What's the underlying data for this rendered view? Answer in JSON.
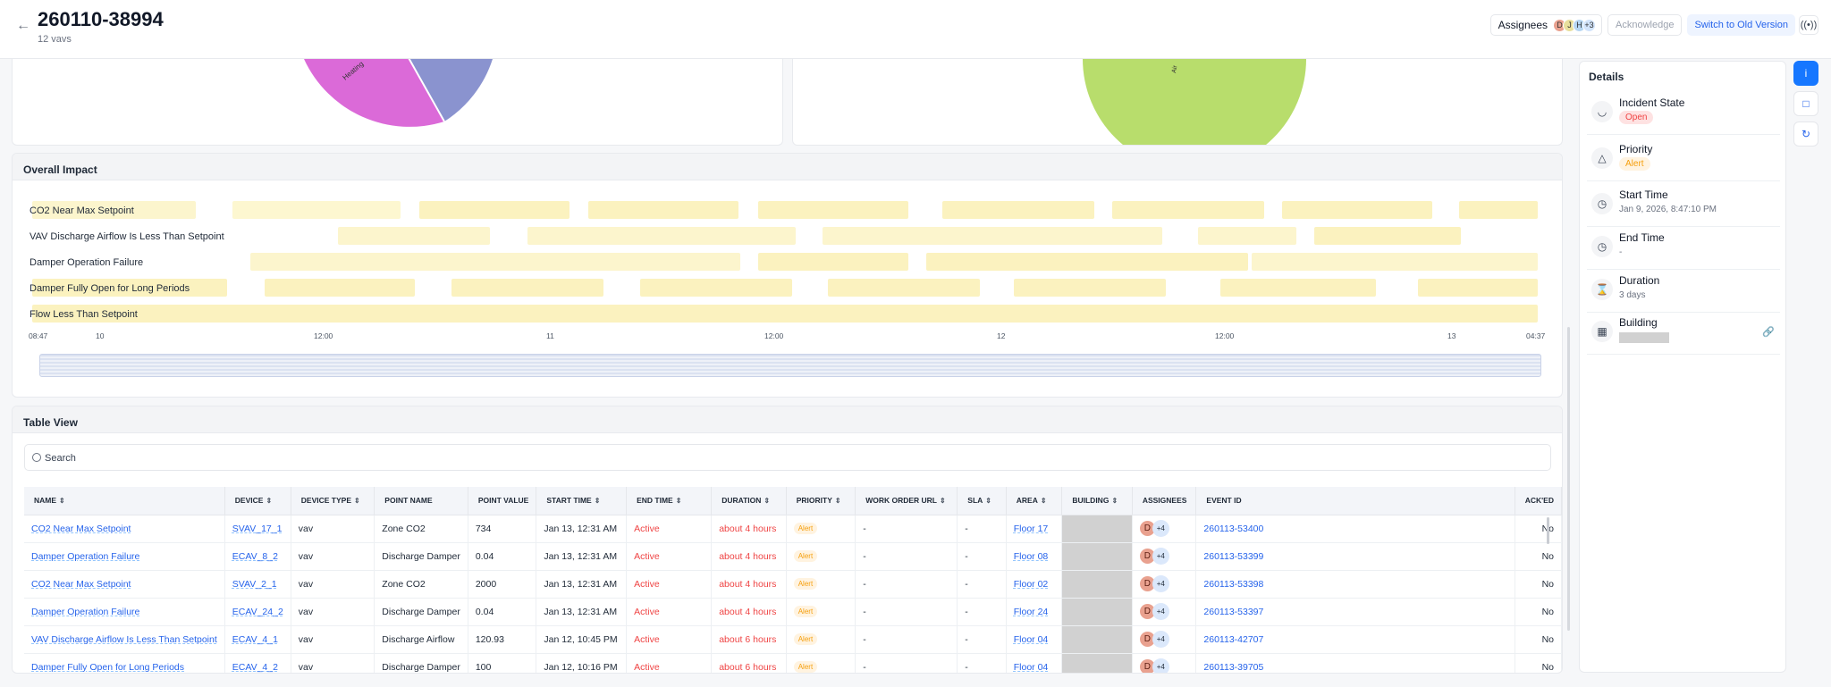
{
  "header": {
    "title": "260110-38994",
    "subtitle": "12 vavs",
    "assignees_label": "Assignees",
    "assignee_avatars": [
      "D",
      "J",
      "H"
    ],
    "assignee_more": "+3",
    "acknowledge_label": "Acknowledge",
    "switch_label": "Switch to Old Version"
  },
  "pies": {
    "left_slice_label": "Heating",
    "right_slice_label": "Air"
  },
  "impact": {
    "title": "Overall Impact",
    "rows": [
      "CO2 Near Max Setpoint",
      "VAV Discharge Airflow Is Less Than Setpoint",
      "Damper Operation Failure",
      "Damper Fully Open for Long Periods",
      "Flow Less Than Setpoint"
    ],
    "ticks": [
      "08:47",
      "10",
      "12:00",
      "11",
      "12:00",
      "12",
      "12:00",
      "13",
      "04:37"
    ]
  },
  "table": {
    "title": "Table View",
    "search_placeholder": "Search",
    "columns": [
      "NAME",
      "DEVICE",
      "DEVICE TYPE",
      "POINT NAME",
      "POINT VALUE",
      "START TIME",
      "END TIME",
      "DURATION",
      "PRIORITY",
      "WORK ORDER URL",
      "SLA",
      "AREA",
      "BUILDING",
      "ASSIGNEES",
      "EVENT ID",
      "ACK'ED"
    ],
    "rows": [
      {
        "name": "CO2 Near Max Setpoint",
        "device": "SVAV_17_1",
        "type": "vav",
        "point": "Zone CO2",
        "value": "734",
        "start": "Jan 13, 12:31 AM",
        "end": "Active",
        "duration": "about 4 hours",
        "priority": "Alert",
        "wo": "-",
        "sla": "-",
        "area": "Floor 17",
        "avatar": "D",
        "more": "+4",
        "event": "260113-53400",
        "acked": "No"
      },
      {
        "name": "Damper Operation Failure",
        "device": "ECAV_8_2",
        "type": "vav",
        "point": "Discharge Damper",
        "value": "0.04",
        "start": "Jan 13, 12:31 AM",
        "end": "Active",
        "duration": "about 4 hours",
        "priority": "Alert",
        "wo": "-",
        "sla": "-",
        "area": "Floor 08",
        "avatar": "D",
        "more": "+4",
        "event": "260113-53399",
        "acked": "No"
      },
      {
        "name": "CO2 Near Max Setpoint",
        "device": "SVAV_2_1",
        "type": "vav",
        "point": "Zone CO2",
        "value": "2000",
        "start": "Jan 13, 12:31 AM",
        "end": "Active",
        "duration": "about 4 hours",
        "priority": "Alert",
        "wo": "-",
        "sla": "-",
        "area": "Floor 02",
        "avatar": "D",
        "more": "+4",
        "event": "260113-53398",
        "acked": "No"
      },
      {
        "name": "Damper Operation Failure",
        "device": "ECAV_24_2",
        "type": "vav",
        "point": "Discharge Damper",
        "value": "0.04",
        "start": "Jan 13, 12:31 AM",
        "end": "Active",
        "duration": "about 4 hours",
        "priority": "Alert",
        "wo": "-",
        "sla": "-",
        "area": "Floor 24",
        "avatar": "D",
        "more": "+4",
        "event": "260113-53397",
        "acked": "No"
      },
      {
        "name": "VAV Discharge Airflow Is Less Than Setpoint",
        "device": "ECAV_4_1",
        "type": "vav",
        "point": "Discharge Airflow",
        "value": "120.93",
        "start": "Jan 12, 10:45 PM",
        "end": "Active",
        "duration": "about 6 hours",
        "priority": "Alert",
        "wo": "-",
        "sla": "-",
        "area": "Floor 04",
        "avatar": "D",
        "more": "+4",
        "event": "260113-42707",
        "acked": "No"
      },
      {
        "name": "Damper Fully Open for Long Periods",
        "device": "ECAV_4_2",
        "type": "vav",
        "point": "Discharge Damper",
        "value": "100",
        "start": "Jan 12, 10:16 PM",
        "end": "Active",
        "duration": "about 6 hours",
        "priority": "Alert",
        "wo": "-",
        "sla": "-",
        "area": "Floor 04",
        "avatar": "D",
        "more": "+4",
        "event": "260113-39705",
        "acked": "No"
      }
    ]
  },
  "details": {
    "title": "Details",
    "items": [
      {
        "label": "Incident State",
        "value": "Open"
      },
      {
        "label": "Priority",
        "value": "Alert"
      },
      {
        "label": "Start Time",
        "value": "Jan 9, 2026, 8:47:10 PM"
      },
      {
        "label": "End Time",
        "value": "-"
      },
      {
        "label": "Duration",
        "value": "3 days"
      },
      {
        "label": "Building",
        "value": ""
      }
    ]
  },
  "colors": {
    "accent": "#2563eb",
    "active_red": "#ef4444",
    "alert_orange": "#f59e0b",
    "heating_pink": "#db6ad8",
    "cooling_blue": "#8a93cf",
    "air_green": "#b8dd6c",
    "impact_yellow": "#fdf7d0"
  }
}
